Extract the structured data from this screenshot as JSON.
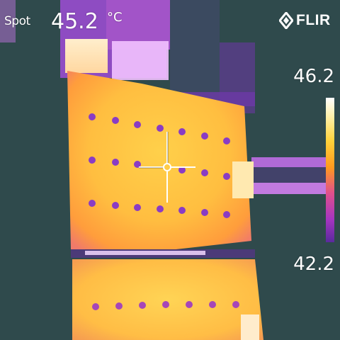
{
  "hud": {
    "spot_label": "Spot",
    "spot_value": "45.2",
    "spot_unit": "°C"
  },
  "brand": {
    "name": "FLIR",
    "icon": "flir-logo-icon"
  },
  "scale": {
    "max": "46.2",
    "min": "42.2"
  },
  "colors": {
    "background": "#2f4a4c",
    "hot": "#ffe08a",
    "warm": "#ffb040",
    "cool": "#8a3cc4"
  }
}
